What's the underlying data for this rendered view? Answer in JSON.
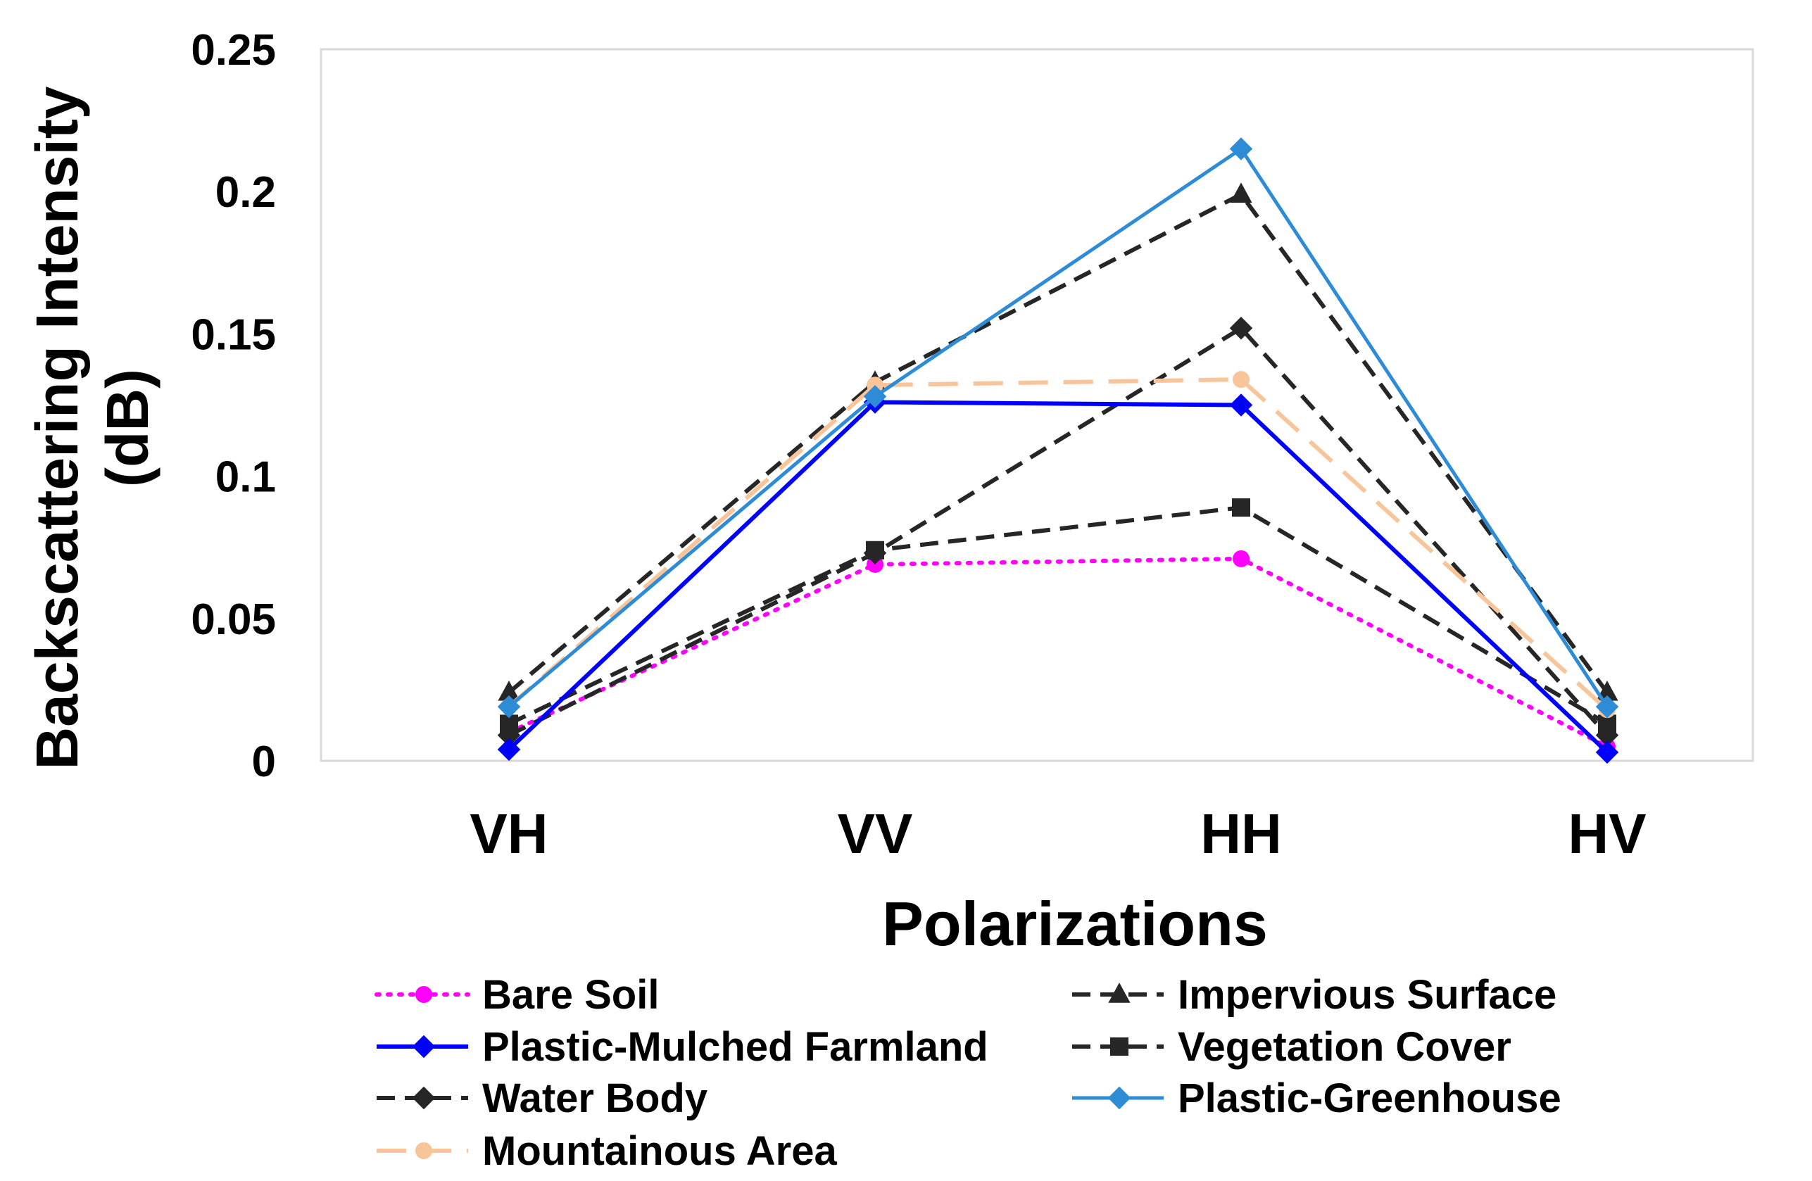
{
  "chart_data": {
    "type": "line",
    "title": "",
    "xlabel": "Polarizations",
    "ylabel": [
      "Backscattering Intensity",
      "(dB)"
    ],
    "categories": [
      "VH",
      "VV",
      "HH",
      "HV"
    ],
    "ylim": [
      0,
      0.25
    ],
    "yticks": [
      "0",
      "0.05",
      "0.1",
      "0.15",
      "0.2",
      "0.25"
    ],
    "ytick_values": [
      0,
      0.05,
      0.1,
      0.15,
      0.2,
      0.25
    ],
    "grid": false,
    "legend_position": "bottom",
    "series": [
      {
        "name": "Bare Soil",
        "values": [
          0.01,
          0.069,
          0.071,
          0.005
        ],
        "color": "#ff00ff",
        "dash": "dotted",
        "marker": "circle",
        "key": "bare-soil"
      },
      {
        "name": "Impervious Surface",
        "values": [
          0.024,
          0.133,
          0.199,
          0.024
        ],
        "color": "#262626",
        "dash": "dashed",
        "marker": "triangle",
        "key": "impervious-surface"
      },
      {
        "name": "Plastic-Mulched Farmland",
        "values": [
          0.004,
          0.126,
          0.125,
          0.003
        ],
        "color": "#0000ff",
        "dash": "solid",
        "marker": "diamond",
        "key": "plastic-mulched-farmland"
      },
      {
        "name": "Vegetation Cover",
        "values": [
          0.013,
          0.074,
          0.089,
          0.013
        ],
        "color": "#262626",
        "dash": "dashed",
        "marker": "square",
        "key": "vegetation-cover"
      },
      {
        "name": "Water Body",
        "values": [
          0.009,
          0.073,
          0.152,
          0.009
        ],
        "color": "#262626",
        "dash": "dashed",
        "marker": "diamond",
        "key": "water-body"
      },
      {
        "name": "Plastic-Greenhouse",
        "values": [
          0.019,
          0.128,
          0.215,
          0.019
        ],
        "color": "#2e8bd6",
        "dash": "solid",
        "marker": "diamond",
        "key": "plastic-greenhouse"
      },
      {
        "name": "Mountainous Area",
        "values": [
          0.019,
          0.132,
          0.134,
          0.018
        ],
        "color": "#f8c59b",
        "dash": "longdash",
        "marker": "circle",
        "key": "mountainous-area"
      }
    ]
  }
}
